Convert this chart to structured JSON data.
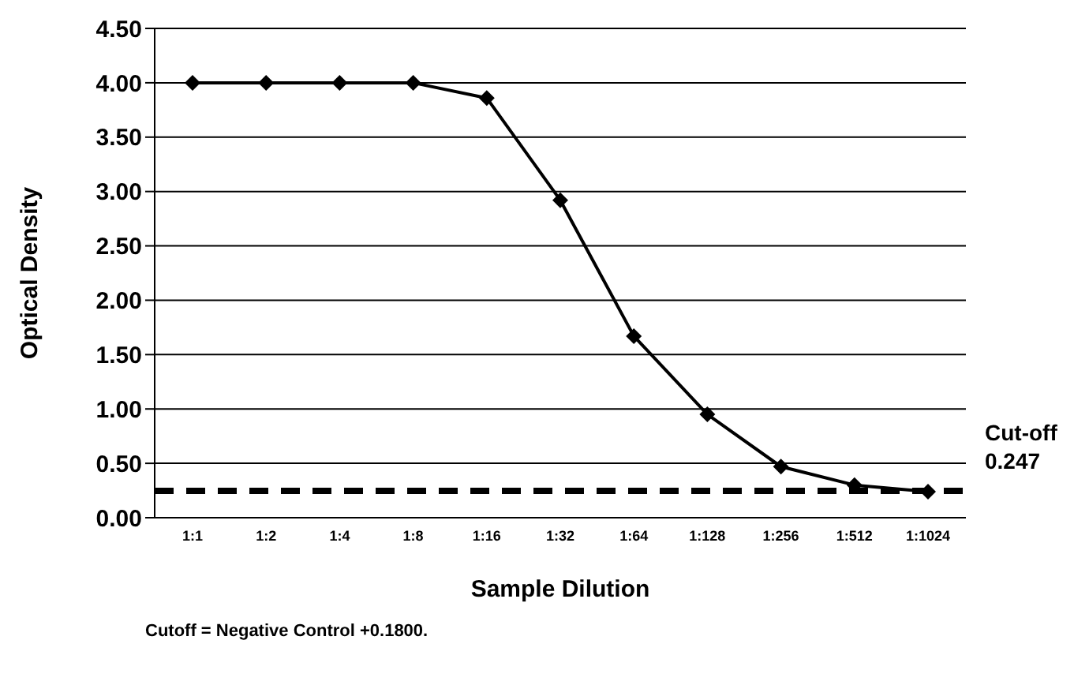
{
  "chart_data": {
    "type": "line",
    "xlabel": "Sample Dilution",
    "ylabel": "Optical Density",
    "categories": [
      "1:1",
      "1:2",
      "1:4",
      "1:8",
      "1:16",
      "1:32",
      "1:64",
      "1:128",
      "1:256",
      "1:512",
      "1:1024"
    ],
    "series": [
      {
        "color": "#000000",
        "values": [
          4.0,
          4.0,
          4.0,
          4.0,
          3.86,
          2.92,
          1.67,
          0.95,
          0.47,
          0.3,
          0.24
        ]
      }
    ],
    "ylim": [
      0,
      4.5
    ],
    "yticks": [
      {
        "value": 0,
        "label": "0.00"
      },
      {
        "value": 0.5,
        "label": "0.50"
      },
      {
        "value": 1,
        "label": "1.00"
      },
      {
        "value": 1.5,
        "label": "1.50"
      },
      {
        "value": 2,
        "label": "2.00"
      },
      {
        "value": 2.5,
        "label": "2.50"
      },
      {
        "value": 3,
        "label": "3.00"
      },
      {
        "value": 3.5,
        "label": "3.50"
      },
      {
        "value": 4,
        "label": "4.00"
      },
      {
        "value": 4.5,
        "label": "4.50"
      }
    ],
    "grid": "y",
    "marker": "diamond",
    "line_style": "solid",
    "ref_lines": [
      {
        "axis": "y",
        "value": 0.247,
        "label": "Cut-off 0.247",
        "color": "#000000",
        "line_style": "dashed"
      }
    ],
    "annotations": [
      "Cutoff = Negative Control +0.1800."
    ]
  }
}
